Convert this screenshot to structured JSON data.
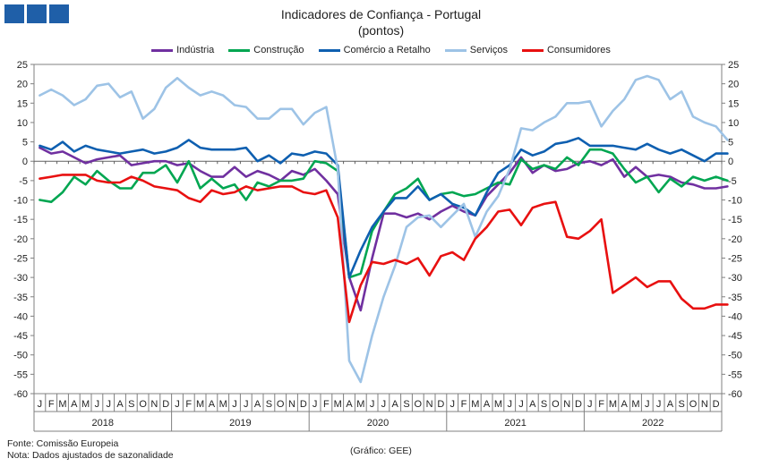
{
  "header": {
    "title": "Indicadores de Confiança - Portugal",
    "subtitle": "(pontos)"
  },
  "footer": {
    "source": "Fonte: Comissão Europeia",
    "note": "Nota: Dados ajustados de sazonalidade",
    "credit": "(Gráfico: GEE)"
  },
  "chart_data": {
    "type": "line",
    "ylim": [
      -60,
      25
    ],
    "yticks": [
      25,
      20,
      15,
      10,
      5,
      0,
      -5,
      -10,
      -15,
      -20,
      -25,
      -30,
      -35,
      -40,
      -45,
      -50,
      -55,
      -60
    ],
    "grid": false,
    "legend_position": "top",
    "month_labels": [
      "J",
      "F",
      "M",
      "A",
      "M",
      "J",
      "J",
      "A",
      "S",
      "O",
      "N",
      "D"
    ],
    "years": [
      "2018",
      "2019",
      "2020",
      "2021",
      "2022"
    ],
    "series": [
      {
        "name": "Indústria",
        "color": "#7030a0",
        "values": [
          3.5,
          2,
          2.5,
          1,
          -0.5,
          0.5,
          1,
          1.5,
          -1,
          -0.5,
          0,
          0,
          -1,
          -0.5,
          -2.5,
          -4,
          -4,
          -1.5,
          -4,
          -2.5,
          -3.5,
          -5,
          -2.5,
          -3.5,
          -2,
          -5,
          -8.5,
          -30,
          -38.5,
          -25,
          -13.5,
          -13.5,
          -14.5,
          -13.5,
          -15,
          -13,
          -11.5,
          -13,
          -14,
          -9,
          -6,
          -3,
          1,
          -3,
          -1,
          -2.5,
          -2,
          -0.5,
          0,
          -1,
          0.5,
          -4,
          -1.5,
          -4,
          -3.5,
          -4,
          -5.5,
          -6,
          -7,
          -7,
          -6.5
        ]
      },
      {
        "name": "Construção",
        "color": "#00a651",
        "values": [
          -10,
          -10.5,
          -8,
          -4,
          -6,
          -2.5,
          -5,
          -7,
          -7,
          -3,
          -3,
          -1,
          -5.5,
          0,
          -7,
          -4.5,
          -7,
          -6,
          -10,
          -5.5,
          -6.5,
          -5,
          -5,
          -4.5,
          0,
          -0.5,
          -2.5,
          -30,
          -29,
          -18,
          -13,
          -8.5,
          -7,
          -4.5,
          -10,
          -8.5,
          -8,
          -9,
          -8.5,
          -7,
          -5.5,
          -6,
          0.5,
          -2,
          -1,
          -2,
          1,
          -1,
          3,
          3,
          2,
          -2,
          -5.5,
          -4,
          -8,
          -4.5,
          -6.5,
          -4,
          -5,
          -4,
          -5
        ]
      },
      {
        "name": "Comércio a Retalho",
        "color": "#0e5fb0",
        "values": [
          4,
          3,
          5,
          2.5,
          4,
          3,
          2.5,
          2,
          2.5,
          3,
          2,
          2.5,
          3.5,
          5.5,
          3.5,
          3,
          3,
          3,
          3.5,
          0,
          1.5,
          -0.5,
          2,
          1.5,
          2.5,
          2,
          -1,
          -30,
          -23,
          -17,
          -13,
          -9.5,
          -9.5,
          -6.5,
          -10,
          -8.5,
          -11,
          -12,
          -14,
          -8,
          -3,
          -1,
          3,
          1.5,
          2.5,
          4.5,
          5,
          6,
          4,
          4,
          4,
          3.5,
          3,
          4.5,
          3,
          2,
          3,
          1.5,
          0,
          2,
          2
        ]
      },
      {
        "name": "Serviços",
        "color": "#9dc3e6",
        "values": [
          17,
          18.5,
          17,
          14.5,
          16,
          19.5,
          20,
          16.5,
          18,
          11,
          13.5,
          19,
          21.5,
          19,
          17,
          18,
          17,
          14.5,
          14,
          11,
          11,
          13.5,
          13.5,
          9.5,
          12.5,
          14,
          -2,
          -51.5,
          -57,
          -45,
          -35,
          -27,
          -17,
          -14.5,
          -14,
          -17,
          -14,
          -11,
          -19.5,
          -13,
          -9,
          -2,
          8.5,
          8,
          10,
          11.5,
          15,
          15,
          15.5,
          9,
          13,
          16,
          21,
          22,
          21,
          16,
          18,
          11.5,
          10,
          9,
          5.5
        ]
      },
      {
        "name": "Consumidores",
        "color": "#e81010",
        "values": [
          -4.5,
          -4,
          -3.5,
          -3.5,
          -3.5,
          -5,
          -5.5,
          -5.5,
          -4,
          -5,
          -6.5,
          -7,
          -7.5,
          -9.5,
          -10.5,
          -7.5,
          -8.5,
          -8,
          -6.5,
          -7.5,
          -7,
          -6.5,
          -6.5,
          -8,
          -8.5,
          -7.5,
          -14.5,
          -41.5,
          -32,
          -26,
          -26.5,
          -25.5,
          -26.5,
          -25,
          -29.5,
          -24.5,
          -23.5,
          -25.5,
          -20,
          -17,
          -13,
          -12.5,
          -16.5,
          -12,
          -11,
          -10.5,
          -19.5,
          -20,
          -18,
          -15,
          -34,
          -32,
          -30,
          -32.5,
          -31,
          -31,
          -35.5,
          -38,
          -38,
          -37,
          -37
        ]
      }
    ]
  }
}
